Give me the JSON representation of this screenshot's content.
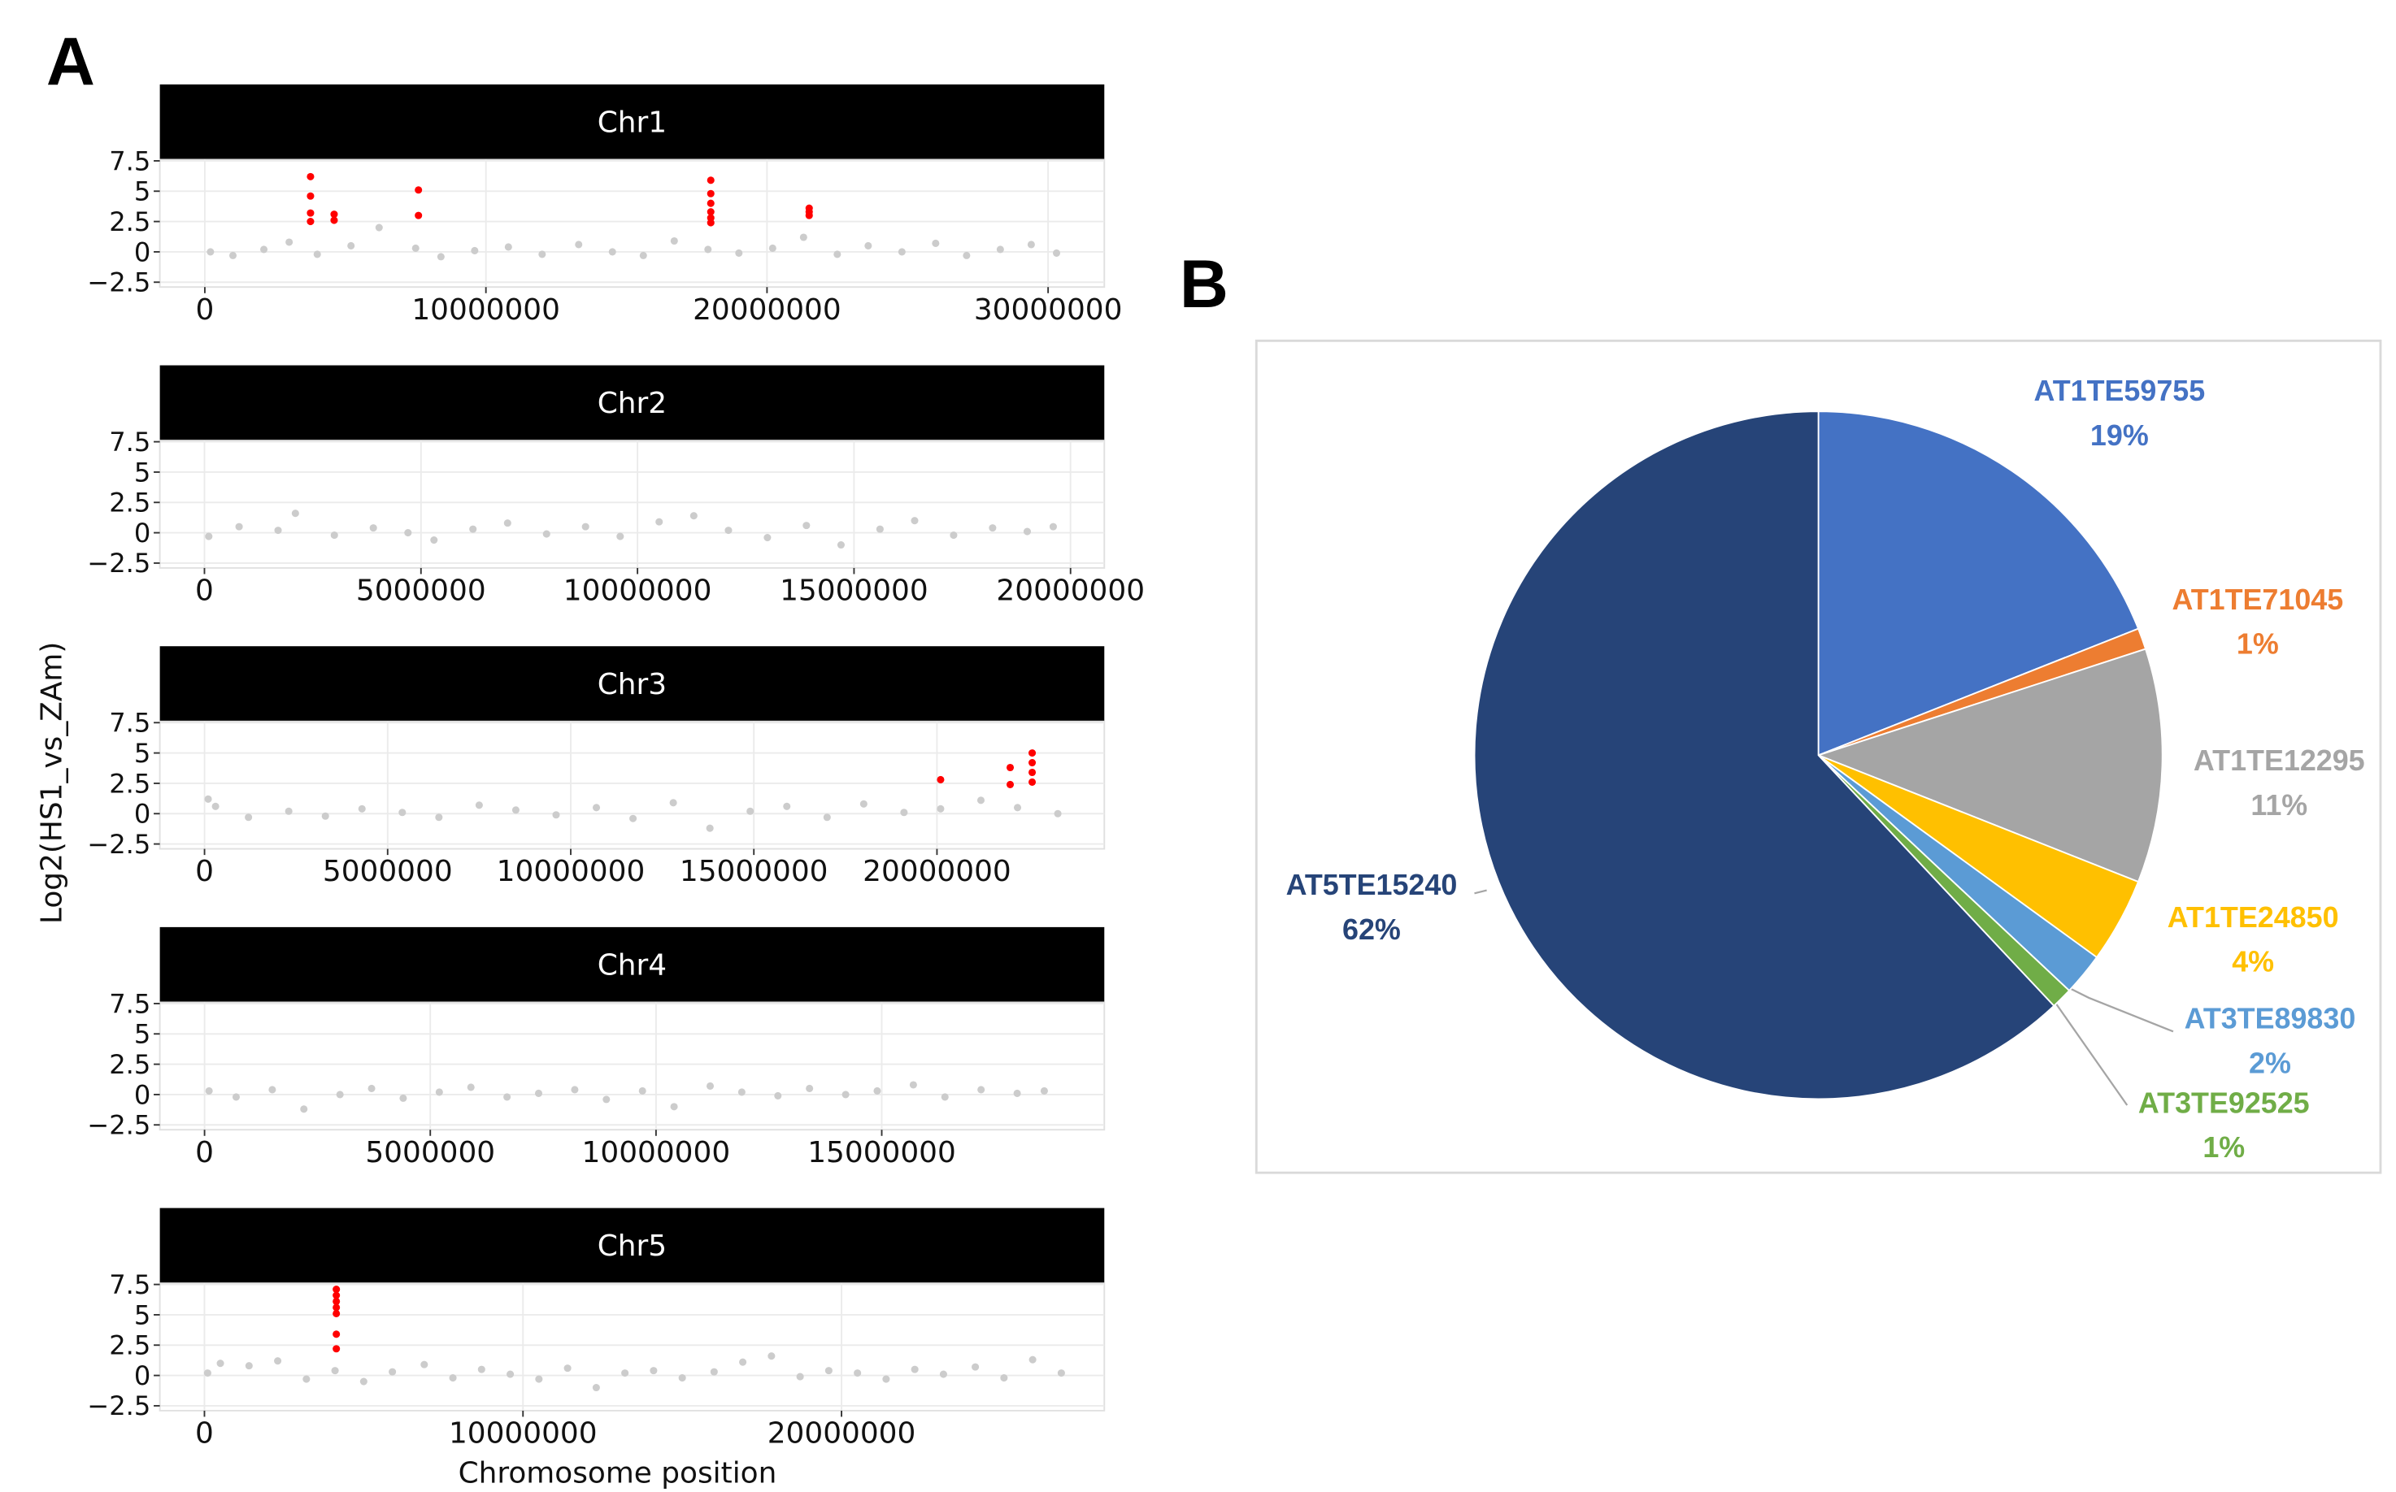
{
  "panel_labels": [
    "A",
    "B"
  ],
  "y_label": "Log2(HS1_vs_ZAm)",
  "x_label": "Chromosome position",
  "chart_data": [
    {
      "type": "scatter",
      "title": "Chr1",
      "xlim": [
        -1600000,
        32000000
      ],
      "ylim": [
        -2.9,
        7.6
      ],
      "xticks": [
        0,
        10000000,
        20000000,
        30000000
      ],
      "yticks": [
        {
          "value": -2.5,
          "label": "−2.5"
        },
        0,
        2.5,
        5,
        7.5
      ],
      "grid": true,
      "series": [
        {
          "color": "#cccccc",
          "x": [
            200000,
            1000000,
            2100000,
            3000000,
            4000000,
            5200000,
            6200000,
            7500000,
            8400000,
            9600000,
            10800000,
            12000000,
            13300000,
            14500000,
            15600000,
            16700000,
            17900000,
            19000000,
            20200000,
            21300000,
            22500000,
            23600000,
            24800000,
            26000000,
            27100000,
            28300000,
            29400000,
            30300000
          ],
          "values": [
            0,
            -0.3,
            0.2,
            0.8,
            -0.2,
            0.5,
            2.0,
            0.3,
            -0.4,
            0.1,
            0.4,
            -0.2,
            0.6,
            0,
            -0.3,
            0.9,
            0.2,
            -0.1,
            0.3,
            1.2,
            -0.2,
            0.5,
            0,
            0.7,
            -0.3,
            0.2,
            0.6,
            -0.1
          ]
        },
        {
          "color": "#ff0000",
          "x": [
            3760000,
            3760000,
            3760000,
            3760000,
            4600000,
            4600000,
            7600000,
            7600000,
            18000000,
            18000000,
            18000000,
            18000000,
            18000000,
            18000000,
            21500000,
            21500000,
            21500000
          ],
          "values": [
            6.2,
            4.6,
            3.2,
            2.5,
            3.1,
            2.6,
            5.1,
            3.0,
            5.9,
            4.8,
            4.0,
            3.3,
            2.8,
            2.4,
            3.6,
            3.3,
            3.0
          ]
        }
      ]
    },
    {
      "type": "scatter",
      "title": "Chr2",
      "xlim": [
        -1030000,
        20780000
      ],
      "ylim": [
        -2.9,
        7.6
      ],
      "xticks": [
        0,
        5000000,
        10000000,
        15000000,
        20000000
      ],
      "yticks": [
        {
          "value": -2.5,
          "label": "−2.5"
        },
        0,
        2.5,
        5,
        7.5
      ],
      "grid": true,
      "series": [
        {
          "color": "#cccccc",
          "x": [
            100000,
            800000,
            1700000,
            2100000,
            3000000,
            3900000,
            4700000,
            5300000,
            6200000,
            7000000,
            7900000,
            8800000,
            9600000,
            10500000,
            11300000,
            12100000,
            13000000,
            13900000,
            14700000,
            15600000,
            16400000,
            17300000,
            18200000,
            19000000,
            19600000
          ],
          "values": [
            -0.3,
            0.5,
            0.2,
            1.6,
            -0.2,
            0.4,
            0,
            -0.6,
            0.3,
            0.8,
            -0.1,
            0.5,
            -0.3,
            0.9,
            1.4,
            0.2,
            -0.4,
            0.6,
            -1.0,
            0.3,
            1.0,
            -0.2,
            0.4,
            0.1,
            0.5
          ]
        }
      ]
    },
    {
      "type": "scatter",
      "title": "Chr3",
      "xlim": [
        -1220000,
        24570000
      ],
      "ylim": [
        -2.9,
        7.6
      ],
      "xticks": [
        0,
        5000000,
        10000000,
        15000000,
        20000000
      ],
      "yticks": [
        {
          "value": -2.5,
          "label": "−2.5"
        },
        0,
        2.5,
        5,
        7.5
      ],
      "grid": true,
      "series": [
        {
          "color": "#cccccc",
          "x": [
            100000,
            300000,
            1200000,
            2300000,
            3300000,
            4300000,
            5400000,
            6400000,
            7500000,
            8500000,
            9600000,
            10700000,
            11700000,
            12800000,
            13800000,
            14900000,
            15900000,
            17000000,
            18000000,
            19100000,
            20100000,
            21200000,
            22200000,
            23300000
          ],
          "values": [
            1.2,
            0.6,
            -0.3,
            0.2,
            -0.2,
            0.4,
            0.1,
            -0.3,
            0.7,
            0.3,
            -0.1,
            0.5,
            -0.4,
            0.9,
            -1.2,
            0.2,
            0.6,
            -0.3,
            0.8,
            0.1,
            0.4,
            1.1,
            0.5,
            0
          ]
        },
        {
          "color": "#ff0000",
          "x": [
            20100000,
            22000000,
            22000000,
            22600000,
            22600000,
            22600000,
            22600000
          ],
          "values": [
            2.8,
            3.8,
            2.4,
            5.0,
            4.2,
            3.4,
            2.6
          ]
        }
      ]
    },
    {
      "type": "scatter",
      "title": "Chr4",
      "xlim": [
        -990000,
        19930000
      ],
      "ylim": [
        -2.9,
        7.6
      ],
      "xticks": [
        0,
        5000000,
        10000000,
        15000000
      ],
      "yticks": [
        {
          "value": -2.5,
          "label": "−2.5"
        },
        0,
        2.5,
        5,
        7.5
      ],
      "grid": true,
      "series": [
        {
          "color": "#cccccc",
          "x": [
            100000,
            700000,
            1500000,
            2200000,
            3000000,
            3700000,
            4400000,
            5200000,
            5900000,
            6700000,
            7400000,
            8200000,
            8900000,
            9700000,
            10400000,
            11200000,
            11900000,
            12700000,
            13400000,
            14200000,
            14900000,
            15700000,
            16400000,
            17200000,
            18000000,
            18600000
          ],
          "values": [
            0.3,
            -0.2,
            0.4,
            -1.2,
            0,
            0.5,
            -0.3,
            0.2,
            0.6,
            -0.2,
            0.1,
            0.4,
            -0.4,
            0.3,
            -1.0,
            0.7,
            0.2,
            -0.1,
            0.5,
            0,
            0.3,
            0.8,
            -0.2,
            0.4,
            0.1,
            0.3
          ]
        }
      ]
    },
    {
      "type": "scatter",
      "title": "Chr5",
      "xlim": [
        -1400000,
        28250000
      ],
      "ylim": [
        -2.9,
        7.6
      ],
      "xticks": [
        0,
        10000000,
        20000000
      ],
      "yticks": [
        {
          "value": -2.5,
          "label": "−2.5"
        },
        0,
        2.5,
        5,
        7.5
      ],
      "grid": true,
      "series": [
        {
          "color": "#cccccc",
          "x": [
            100000,
            500000,
            1400000,
            2300000,
            3200000,
            4100000,
            5000000,
            5900000,
            6900000,
            7800000,
            8700000,
            9600000,
            10500000,
            11400000,
            12300000,
            13200000,
            14100000,
            15000000,
            16000000,
            16900000,
            17800000,
            18700000,
            19600000,
            20500000,
            21400000,
            22300000,
            23200000,
            24200000,
            25100000,
            26000000,
            26900000
          ],
          "values": [
            0.2,
            1.0,
            0.8,
            1.2,
            -0.3,
            0.4,
            -0.5,
            0.3,
            0.9,
            -0.2,
            0.5,
            0.1,
            -0.3,
            0.6,
            -1.0,
            0.2,
            0.4,
            -0.2,
            0.3,
            1.1,
            1.6,
            -0.1,
            0.4,
            0.2,
            -0.3,
            0.5,
            0.1,
            0.7,
            -0.2,
            1.3,
            0.2
          ]
        },
        {
          "color": "#ff0000",
          "x": [
            4140000,
            4140000,
            4140000,
            4140000,
            4140000,
            4140000,
            4140000
          ],
          "values": [
            7.1,
            6.6,
            6.1,
            5.6,
            5.1,
            3.4,
            2.2
          ]
        }
      ]
    },
    {
      "type": "pie",
      "categories": [
        "AT1TE59755",
        "AT1TE71045",
        "AT1TE12295",
        "AT1TE24850",
        "AT3TE89830",
        "AT3TE92525",
        "AT5TE15240"
      ],
      "values": [
        19,
        1,
        11,
        4,
        2,
        1,
        62
      ],
      "value_labels": [
        "19%",
        "1%",
        "11%",
        "4%",
        "2%",
        "1%",
        "62%"
      ],
      "colors": [
        "#4472c4",
        "#ed7d31",
        "#a5a5a5",
        "#ffc000",
        "#5b9bd5",
        "#70ad47",
        "#264478"
      ]
    }
  ]
}
